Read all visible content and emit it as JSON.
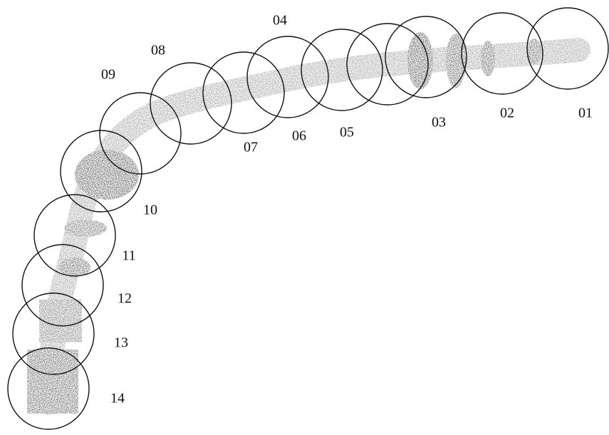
{
  "nodes": [
    {
      "label": "01"
    },
    {
      "label": "02"
    },
    {
      "label": "03"
    },
    {
      "label": "04"
    },
    {
      "label": "05"
    },
    {
      "label": "06"
    },
    {
      "label": "07"
    },
    {
      "label": "08"
    },
    {
      "label": "09"
    },
    {
      "label": "10"
    },
    {
      "label": "11"
    },
    {
      "label": "12"
    },
    {
      "label": "13"
    },
    {
      "label": "14"
    }
  ]
}
